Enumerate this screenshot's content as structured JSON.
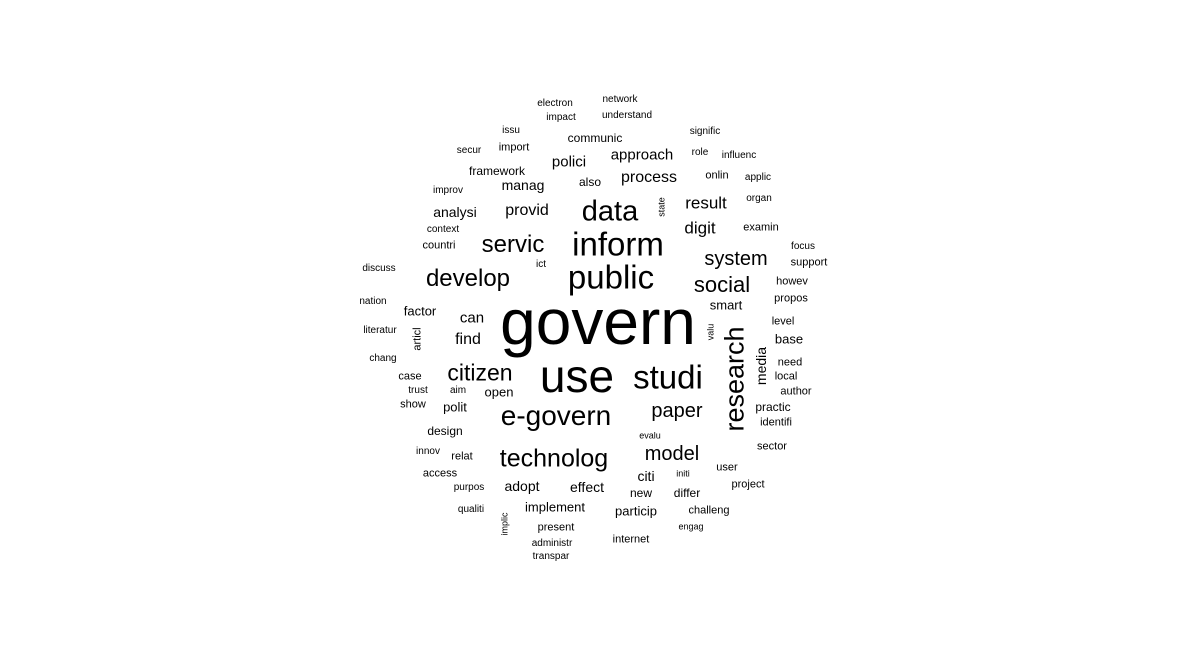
{
  "word_cloud": {
    "text_color": "#000000",
    "background": "#ffffff",
    "words": [
      {
        "text": "govern",
        "vertical": false
      },
      {
        "text": "use",
        "vertical": false
      },
      {
        "text": "public",
        "vertical": false
      },
      {
        "text": "inform",
        "vertical": false
      },
      {
        "text": "data",
        "vertical": false
      },
      {
        "text": "studi",
        "vertical": false
      },
      {
        "text": "research",
        "vertical": true
      },
      {
        "text": "e-govern",
        "vertical": false
      },
      {
        "text": "servic",
        "vertical": false
      },
      {
        "text": "develop",
        "vertical": false
      },
      {
        "text": "citizen",
        "vertical": false
      },
      {
        "text": "technolog",
        "vertical": false
      },
      {
        "text": "paper",
        "vertical": false
      },
      {
        "text": "social",
        "vertical": false
      },
      {
        "text": "system",
        "vertical": false
      },
      {
        "text": "model",
        "vertical": false
      },
      {
        "text": "result",
        "vertical": false
      },
      {
        "text": "digit",
        "vertical": false
      },
      {
        "text": "provid",
        "vertical": false
      },
      {
        "text": "process",
        "vertical": false
      },
      {
        "text": "approach",
        "vertical": false
      },
      {
        "text": "polici",
        "vertical": false
      },
      {
        "text": "manag",
        "vertical": false
      },
      {
        "text": "analysi",
        "vertical": false
      },
      {
        "text": "can",
        "vertical": false
      },
      {
        "text": "find",
        "vertical": false
      },
      {
        "text": "factor",
        "vertical": false
      },
      {
        "text": "smart",
        "vertical": false
      },
      {
        "text": "media",
        "vertical": true
      },
      {
        "text": "adopt",
        "vertical": false
      },
      {
        "text": "effect",
        "vertical": false
      },
      {
        "text": "citi",
        "vertical": false
      },
      {
        "text": "polit",
        "vertical": false
      },
      {
        "text": "open",
        "vertical": false
      },
      {
        "text": "implement",
        "vertical": false
      },
      {
        "text": "particip",
        "vertical": false
      },
      {
        "text": "design",
        "vertical": false
      },
      {
        "text": "practic",
        "vertical": false
      },
      {
        "text": "base",
        "vertical": false
      },
      {
        "text": "communic",
        "vertical": false
      },
      {
        "text": "framework",
        "vertical": false
      },
      {
        "text": "also",
        "vertical": false
      },
      {
        "text": "onlin",
        "vertical": false
      },
      {
        "text": "countri",
        "vertical": false
      },
      {
        "text": "examin",
        "vertical": false
      },
      {
        "text": "artic​l",
        "vertical": true
      },
      {
        "text": "level",
        "vertical": false
      },
      {
        "text": "case",
        "vertical": false
      },
      {
        "text": "show",
        "vertical": false
      },
      {
        "text": "local",
        "vertical": false
      },
      {
        "text": "need",
        "vertical": false
      },
      {
        "text": "author",
        "vertical": false
      },
      {
        "text": "identifi",
        "vertical": false
      },
      {
        "text": "sector",
        "vertical": false
      },
      {
        "text": "user",
        "vertical": false
      },
      {
        "text": "new",
        "vertical": false
      },
      {
        "text": "differ",
        "vertical": false
      },
      {
        "text": "project",
        "vertical": false
      },
      {
        "text": "challeng",
        "vertical": false
      },
      {
        "text": "present",
        "vertical": false
      },
      {
        "text": "internet",
        "vertical": false
      },
      {
        "text": "access",
        "vertical": false
      },
      {
        "text": "relat",
        "vertical": false
      },
      {
        "text": "support",
        "vertical": false
      },
      {
        "text": "propos",
        "vertical": false
      },
      {
        "text": "howev",
        "vertical": false
      },
      {
        "text": "focus",
        "vertical": false
      },
      {
        "text": "import",
        "vertical": false
      },
      {
        "text": "secur",
        "vertical": false
      },
      {
        "text": "issu",
        "vertical": false
      },
      {
        "text": "impact",
        "vertical": false
      },
      {
        "text": "electron",
        "vertical": false
      },
      {
        "text": "network",
        "vertical": false
      },
      {
        "text": "understand",
        "vertical": false
      },
      {
        "text": "signific",
        "vertical": false
      },
      {
        "text": "role",
        "vertical": false
      },
      {
        "text": "influenc",
        "vertical": false
      },
      {
        "text": "applic",
        "vertical": false
      },
      {
        "text": "organ",
        "vertical": false
      },
      {
        "text": "improv",
        "vertical": false
      },
      {
        "text": "context",
        "vertical": false
      },
      {
        "text": "state",
        "vertical": true
      },
      {
        "text": "ict",
        "vertical": false
      },
      {
        "text": "discuss",
        "vertical": false
      },
      {
        "text": "nation",
        "vertical": false
      },
      {
        "text": "literatur",
        "vertical": false
      },
      {
        "text": "chang",
        "vertical": false
      },
      {
        "text": "trust",
        "vertical": false
      },
      {
        "text": "aim",
        "vertical": false
      },
      {
        "text": "valu",
        "vertical": true
      },
      {
        "text": "evalu",
        "vertical": false
      },
      {
        "text": "innov",
        "vertical": false
      },
      {
        "text": "initi",
        "vertical": false
      },
      {
        "text": "purpos",
        "vertical": false
      },
      {
        "text": "qualiti",
        "vertical": false
      },
      {
        "text": "implic",
        "vertical": true
      },
      {
        "text": "administr",
        "vertical": false
      },
      {
        "text": "transpar",
        "vertical": false
      },
      {
        "text": "engag",
        "vertical": false
      }
    ]
  }
}
